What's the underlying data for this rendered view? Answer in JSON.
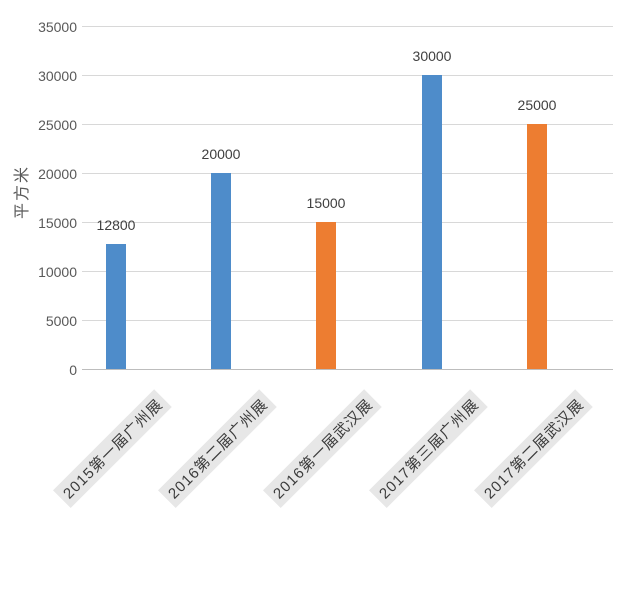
{
  "chart_data": {
    "type": "bar",
    "title": "",
    "xlabel": "",
    "ylabel": "平方米",
    "categories": [
      "2015第一届广州展",
      "2016第二届广州展",
      "2016第一届武汉展",
      "2017第三届广州展",
      "2017第二届武汉展"
    ],
    "values": [
      12800,
      20000,
      15000,
      30000,
      25000
    ],
    "data_labels": [
      "12800",
      "20000",
      "15000",
      "30000",
      "25000"
    ],
    "bar_colors": [
      "#4E8CCA",
      "#4E8CCA",
      "#ED7D31",
      "#4E8CCA",
      "#ED7D31"
    ],
    "ylim": [
      0,
      35000
    ],
    "ytick_step": 5000,
    "yticks": [
      35000,
      30000,
      25000,
      20000,
      15000,
      10000,
      5000,
      0
    ],
    "grid": true,
    "legend_position": "none",
    "colors": {
      "blue_series": "#4E8CCA",
      "orange_series": "#ED7D31",
      "gridline": "#D8D8D8",
      "axis_line": "#BDBDBD",
      "tick_text": "#595959",
      "value_text": "#404040",
      "category_text": "#3B3B3B",
      "category_bg": "#E7E7E7",
      "background": "#FFFFFF"
    }
  }
}
